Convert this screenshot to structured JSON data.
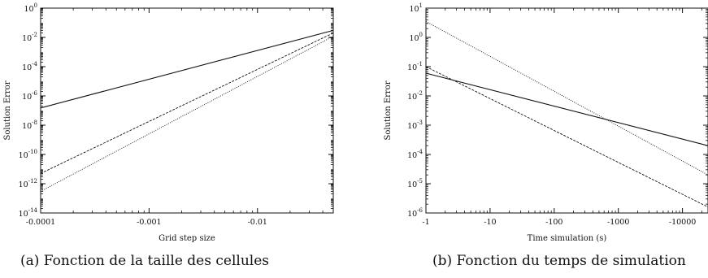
{
  "chart_data": [
    {
      "type": "line",
      "caption": "(a) Fonction de la taille des cellules",
      "xlabel": "Grid step size",
      "ylabel": "Solution Error",
      "xscale": "log",
      "yscale": "log",
      "xlim": [
        0.0001,
        0.05
      ],
      "ylim": [
        1e-14,
        1
      ],
      "xticks": [
        {
          "value": 0.0001,
          "label": "-0.0001"
        },
        {
          "value": 0.001,
          "label": "-0.001"
        },
        {
          "value": 0.01,
          "label": "-0.01"
        }
      ],
      "yticks": [
        {
          "value": 1,
          "label": "10",
          "exp": "0"
        },
        {
          "value": 0.01,
          "label": "10",
          "exp": "-2"
        },
        {
          "value": 0.0001,
          "label": "10",
          "exp": "-4"
        },
        {
          "value": 1e-06,
          "label": "10",
          "exp": "-6"
        },
        {
          "value": 1e-08,
          "label": "10",
          "exp": "-8"
        },
        {
          "value": 1e-10,
          "label": "10",
          "exp": "-10"
        },
        {
          "value": 1e-12,
          "label": "10",
          "exp": "-12"
        },
        {
          "value": 1e-14,
          "label": "10",
          "exp": "-14"
        }
      ],
      "series": [
        {
          "style": "solid",
          "color": "#111111",
          "x": [
            0.0001,
            0.05
          ],
          "y": [
            1.5e-07,
            0.03
          ]
        },
        {
          "style": "dashed",
          "color": "#111111",
          "x": [
            0.0001,
            0.05
          ],
          "y": [
            5e-12,
            0.02
          ]
        },
        {
          "style": "dotted",
          "color": "#111111",
          "x": [
            0.0001,
            0.05
          ],
          "y": [
            3e-13,
            0.012
          ]
        }
      ],
      "grid": false
    },
    {
      "type": "line",
      "caption": "(b) Fonction du temps de simulation",
      "xlabel": "Time simulation (s)",
      "ylabel": "Solution Error",
      "xscale": "log",
      "yscale": "log",
      "xlim": [
        1,
        25000
      ],
      "ylim": [
        1e-06,
        10
      ],
      "xticks": [
        {
          "value": 1,
          "label": "-1"
        },
        {
          "value": 10,
          "label": "-10"
        },
        {
          "value": 100,
          "label": "-100"
        },
        {
          "value": 1000,
          "label": "-1000"
        },
        {
          "value": 10000,
          "label": "-10000"
        }
      ],
      "yticks": [
        {
          "value": 10,
          "label": "10",
          "exp": "1"
        },
        {
          "value": 1,
          "label": "10",
          "exp": "0"
        },
        {
          "value": 0.1,
          "label": "10",
          "exp": "-1"
        },
        {
          "value": 0.01,
          "label": "10",
          "exp": "-2"
        },
        {
          "value": 0.001,
          "label": "10",
          "exp": "-3"
        },
        {
          "value": 0.0001,
          "label": "10",
          "exp": "-4"
        },
        {
          "value": 1e-05,
          "label": "10",
          "exp": "-5"
        },
        {
          "value": 1e-06,
          "label": "10",
          "exp": "-6"
        }
      ],
      "series": [
        {
          "style": "solid",
          "color": "#111111",
          "x": [
            1,
            25000
          ],
          "y": [
            0.06,
            0.0002
          ]
        },
        {
          "style": "dashed",
          "color": "#111111",
          "x": [
            1,
            25000
          ],
          "y": [
            0.1,
            1.6e-06
          ]
        },
        {
          "style": "dotted",
          "color": "#111111",
          "x": [
            1,
            25000
          ],
          "y": [
            3.5,
            2e-05
          ]
        }
      ],
      "grid": false
    }
  ]
}
